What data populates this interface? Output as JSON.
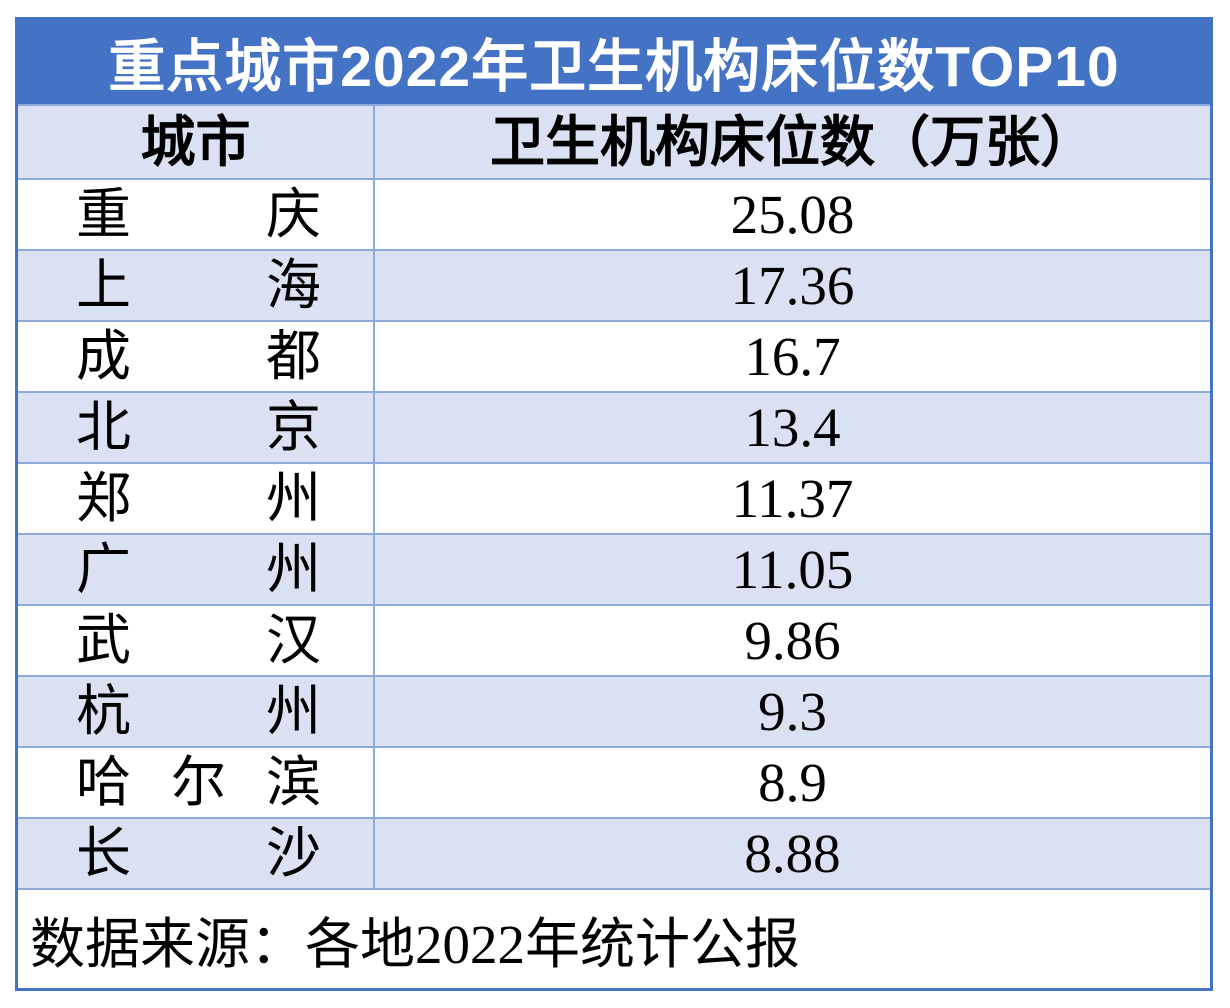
{
  "table": {
    "title": "重点城市2022年卫生机构床位数TOP10",
    "columns": {
      "city": "城市",
      "beds": "卫生机构床位数（万张）"
    },
    "rows": [
      {
        "city": "重庆",
        "value": "25.08"
      },
      {
        "city": "上海",
        "value": "17.36"
      },
      {
        "city": "成都",
        "value": "16.7"
      },
      {
        "city": "北京",
        "value": "13.4"
      },
      {
        "city": "郑州",
        "value": "11.37"
      },
      {
        "city": "广州",
        "value": "11.05"
      },
      {
        "city": "武汉",
        "value": "9.86"
      },
      {
        "city": "杭州",
        "value": "9.3"
      },
      {
        "city": "哈尔滨",
        "value": "8.9"
      },
      {
        "city": "长沙",
        "value": "8.88"
      }
    ],
    "source_note": "数据来源：各地2022年统计公报"
  },
  "colors": {
    "title_bar_blue": "#4472C4",
    "alt_row_blue": "#D9E1F2",
    "grid_line_blue": "#8EA9DB",
    "outer_border_blue": "#4472C4",
    "title_text": "#FFFFFF",
    "body_text": "#000000"
  },
  "chart_data": {
    "type": "table",
    "title": "重点城市2022年卫生机构床位数TOP10",
    "columns": [
      "城市",
      "卫生机构床位数（万张）"
    ],
    "rows": [
      [
        "重庆",
        25.08
      ],
      [
        "上海",
        17.36
      ],
      [
        "成都",
        16.7
      ],
      [
        "北京",
        13.4
      ],
      [
        "郑州",
        11.37
      ],
      [
        "广州",
        11.05
      ],
      [
        "武汉",
        9.86
      ],
      [
        "杭州",
        9.3
      ],
      [
        "哈尔滨",
        8.9
      ],
      [
        "长沙",
        8.88
      ]
    ],
    "unit": "万张",
    "year": "2022",
    "source": "数据来源：各地2022年统计公报",
    "layout": "ranked table, alternating row shading, blue title band"
  }
}
